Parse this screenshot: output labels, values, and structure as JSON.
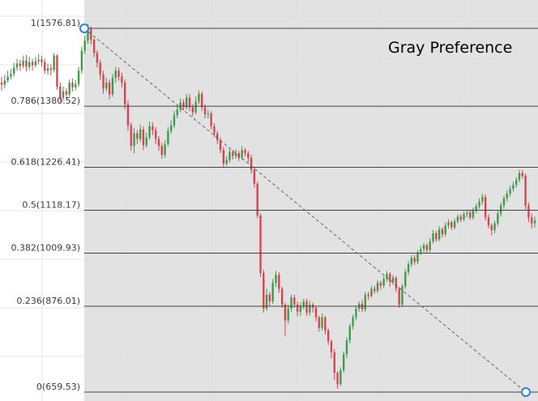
{
  "chart_data": {
    "type": "candlestick-fibonacci",
    "title": "Gray Preference",
    "fib_levels": [
      {
        "ratio": 1,
        "value": 1576.81,
        "label": "1(1576.81)"
      },
      {
        "ratio": 0.786,
        "value": 1380.52,
        "label": "0.786(1380.52)"
      },
      {
        "ratio": 0.618,
        "value": 1226.41,
        "label": "0.618(1226.41)"
      },
      {
        "ratio": 0.5,
        "value": 1118.17,
        "label": "0.5(1118.17)"
      },
      {
        "ratio": 0.382,
        "value": 1009.93,
        "label": "0.382(1009.93)"
      },
      {
        "ratio": 0.236,
        "value": 876.01,
        "label": "0.236(876.01)"
      },
      {
        "ratio": 0,
        "value": 659.53,
        "label": "0(659.53)"
      }
    ],
    "anchor_high": 1576.81,
    "anchor_low": 659.53,
    "grid": true,
    "colors": {
      "zone_fill": "#dddddd",
      "level_line": "#444444",
      "trend_line": "#666666",
      "anchor_marker": "#2f80d1",
      "bull_candle": "#3d9a4b",
      "bear_candle": "#d9434f",
      "grid": "#e6e6e6"
    },
    "candles": [
      [
        1440,
        1435,
        1455,
        1420
      ],
      [
        1435,
        1445,
        1460,
        1425
      ],
      [
        1445,
        1455,
        1470,
        1440
      ],
      [
        1455,
        1462,
        1475,
        1448
      ],
      [
        1462,
        1478,
        1490,
        1455
      ],
      [
        1478,
        1488,
        1500,
        1470
      ],
      [
        1488,
        1482,
        1498,
        1470
      ],
      [
        1482,
        1495,
        1508,
        1476
      ],
      [
        1495,
        1480,
        1510,
        1468
      ],
      [
        1480,
        1492,
        1505,
        1472
      ],
      [
        1492,
        1484,
        1500,
        1470
      ],
      [
        1484,
        1494,
        1505,
        1478
      ],
      [
        1494,
        1498,
        1512,
        1486
      ],
      [
        1498,
        1492,
        1508,
        1480
      ],
      [
        1492,
        1470,
        1500,
        1462
      ],
      [
        1470,
        1476,
        1488,
        1460
      ],
      [
        1476,
        1472,
        1486,
        1458
      ],
      [
        1472,
        1508,
        1515,
        1466
      ],
      [
        1508,
        1430,
        1512,
        1422
      ],
      [
        1430,
        1402,
        1440,
        1390
      ],
      [
        1402,
        1418,
        1430,
        1395
      ],
      [
        1418,
        1410,
        1426,
        1398
      ],
      [
        1410,
        1440,
        1448,
        1404
      ],
      [
        1440,
        1428,
        1450,
        1418
      ],
      [
        1428,
        1436,
        1446,
        1420
      ],
      [
        1436,
        1470,
        1480,
        1430
      ],
      [
        1470,
        1520,
        1530,
        1462
      ],
      [
        1520,
        1546,
        1558,
        1512
      ],
      [
        1546,
        1578,
        1588,
        1538
      ],
      [
        1578,
        1548,
        1582,
        1536
      ],
      [
        1548,
        1515,
        1552,
        1504
      ],
      [
        1515,
        1490,
        1522,
        1478
      ],
      [
        1490,
        1460,
        1498,
        1446
      ],
      [
        1460,
        1425,
        1470,
        1412
      ],
      [
        1425,
        1440,
        1452,
        1418
      ],
      [
        1440,
        1410,
        1448,
        1398
      ],
      [
        1410,
        1452,
        1462,
        1404
      ],
      [
        1452,
        1470,
        1480,
        1440
      ],
      [
        1470,
        1455,
        1478,
        1445
      ],
      [
        1455,
        1440,
        1465,
        1428
      ],
      [
        1440,
        1385,
        1448,
        1372
      ],
      [
        1385,
        1332,
        1395,
        1318
      ],
      [
        1332,
        1280,
        1340,
        1268
      ],
      [
        1280,
        1312,
        1325,
        1262
      ],
      [
        1312,
        1298,
        1320,
        1285
      ],
      [
        1298,
        1322,
        1334,
        1290
      ],
      [
        1322,
        1282,
        1330,
        1270
      ],
      [
        1282,
        1302,
        1314,
        1276
      ],
      [
        1302,
        1330,
        1342,
        1296
      ],
      [
        1330,
        1320,
        1340,
        1308
      ],
      [
        1320,
        1298,
        1328,
        1285
      ],
      [
        1298,
        1280,
        1305,
        1268
      ],
      [
        1280,
        1258,
        1288,
        1248
      ],
      [
        1258,
        1285,
        1295,
        1250
      ],
      [
        1285,
        1318,
        1328,
        1278
      ],
      [
        1318,
        1332,
        1345,
        1310
      ],
      [
        1332,
        1358,
        1368,
        1326
      ],
      [
        1358,
        1372,
        1382,
        1350
      ],
      [
        1372,
        1390,
        1400,
        1365
      ],
      [
        1390,
        1378,
        1398,
        1370
      ],
      [
        1378,
        1402,
        1412,
        1372
      ],
      [
        1402,
        1378,
        1410,
        1368
      ],
      [
        1378,
        1365,
        1385,
        1355
      ],
      [
        1365,
        1392,
        1405,
        1360
      ],
      [
        1392,
        1412,
        1420,
        1386
      ],
      [
        1412,
        1378,
        1418,
        1368
      ],
      [
        1378,
        1360,
        1385,
        1350
      ],
      [
        1360,
        1362,
        1372,
        1350
      ],
      [
        1362,
        1330,
        1368,
        1322
      ],
      [
        1330,
        1312,
        1338,
        1302
      ],
      [
        1312,
        1295,
        1318,
        1285
      ],
      [
        1295,
        1270,
        1302,
        1262
      ],
      [
        1270,
        1236,
        1278,
        1226
      ],
      [
        1236,
        1245,
        1255,
        1230
      ],
      [
        1245,
        1265,
        1272,
        1238
      ],
      [
        1265,
        1255,
        1270,
        1246
      ],
      [
        1255,
        1262,
        1272,
        1248
      ],
      [
        1262,
        1250,
        1268,
        1242
      ],
      [
        1250,
        1270,
        1280,
        1245
      ],
      [
        1270,
        1262,
        1275,
        1254
      ],
      [
        1262,
        1250,
        1268,
        1240
      ],
      [
        1250,
        1220,
        1258,
        1210
      ],
      [
        1220,
        1185,
        1228,
        1175
      ],
      [
        1185,
        1105,
        1190,
        1098
      ],
      [
        1105,
        960,
        1110,
        950
      ],
      [
        960,
        870,
        968,
        860
      ],
      [
        870,
        905,
        920,
        865
      ],
      [
        905,
        888,
        912,
        875
      ],
      [
        888,
        935,
        945,
        882
      ],
      [
        935,
        955,
        965,
        925
      ],
      [
        955,
        920,
        962,
        910
      ],
      [
        920,
        880,
        925,
        872
      ],
      [
        880,
        840,
        885,
        800
      ],
      [
        840,
        870,
        880,
        832
      ],
      [
        870,
        898,
        905,
        862
      ],
      [
        898,
        880,
        905,
        872
      ],
      [
        880,
        862,
        888,
        850
      ],
      [
        862,
        876,
        885,
        852
      ],
      [
        876,
        888,
        895,
        868
      ],
      [
        888,
        860,
        895,
        852
      ],
      [
        860,
        880,
        890,
        852
      ],
      [
        880,
        872,
        885,
        860
      ],
      [
        872,
        848,
        876,
        838
      ],
      [
        848,
        822,
        852,
        812
      ],
      [
        822,
        848,
        858,
        815
      ],
      [
        848,
        815,
        852,
        805
      ],
      [
        815,
        788,
        820,
        778
      ],
      [
        788,
        760,
        792,
        745
      ],
      [
        760,
        708,
        768,
        690
      ],
      [
        708,
        680,
        712,
        668
      ],
      [
        680,
        715,
        722,
        675
      ],
      [
        715,
        755,
        762,
        708
      ],
      [
        755,
        790,
        798,
        745
      ],
      [
        790,
        826,
        832,
        782
      ],
      [
        826,
        848,
        855,
        818
      ],
      [
        848,
        870,
        878,
        840
      ],
      [
        870,
        882,
        888,
        862
      ],
      [
        882,
        868,
        892,
        862
      ],
      [
        868,
        905,
        912,
        862
      ],
      [
        905,
        902,
        912,
        892
      ],
      [
        902,
        920,
        928,
        898
      ],
      [
        920,
        915,
        928,
        908
      ],
      [
        915,
        935,
        942,
        910
      ],
      [
        935,
        928,
        940,
        918
      ],
      [
        928,
        945,
        952,
        922
      ],
      [
        945,
        958,
        965,
        938
      ],
      [
        958,
        938,
        962,
        925
      ],
      [
        938,
        948,
        955,
        930
      ],
      [
        948,
        920,
        952,
        912
      ],
      [
        920,
        880,
        925,
        872
      ],
      [
        880,
        926,
        932,
        875
      ],
      [
        926,
        962,
        970,
        920
      ],
      [
        962,
        982,
        990,
        955
      ],
      [
        982,
        998,
        1005,
        975
      ],
      [
        998,
        988,
        1005,
        980
      ],
      [
        988,
        1012,
        1018,
        982
      ],
      [
        1012,
        1020,
        1028,
        1005
      ],
      [
        1020,
        1030,
        1036,
        1012
      ],
      [
        1030,
        1018,
        1035,
        1010
      ],
      [
        1018,
        1040,
        1048,
        1012
      ],
      [
        1040,
        1060,
        1068,
        1034
      ],
      [
        1060,
        1045,
        1066,
        1038
      ],
      [
        1045,
        1070,
        1078,
        1040
      ],
      [
        1070,
        1058,
        1075,
        1050
      ],
      [
        1058,
        1080,
        1088,
        1052
      ],
      [
        1080,
        1088,
        1095,
        1072
      ],
      [
        1088,
        1075,
        1092,
        1068
      ],
      [
        1075,
        1090,
        1098,
        1070
      ],
      [
        1090,
        1102,
        1108,
        1085
      ],
      [
        1102,
        1095,
        1108,
        1088
      ],
      [
        1095,
        1108,
        1115,
        1090
      ],
      [
        1108,
        1112,
        1120,
        1100
      ],
      [
        1112,
        1100,
        1118,
        1094
      ],
      [
        1100,
        1118,
        1125,
        1095
      ],
      [
        1118,
        1128,
        1135,
        1110
      ],
      [
        1128,
        1140,
        1148,
        1122
      ],
      [
        1140,
        1152,
        1160,
        1132
      ],
      [
        1152,
        1100,
        1158,
        1092
      ],
      [
        1100,
        1080,
        1108,
        1072
      ],
      [
        1080,
        1068,
        1085,
        1055
      ],
      [
        1068,
        1085,
        1092,
        1060
      ],
      [
        1085,
        1110,
        1118,
        1078
      ],
      [
        1110,
        1130,
        1138,
        1102
      ],
      [
        1130,
        1148,
        1155,
        1122
      ],
      [
        1148,
        1160,
        1168,
        1140
      ],
      [
        1160,
        1172,
        1180,
        1152
      ],
      [
        1172,
        1182,
        1190,
        1165
      ],
      [
        1182,
        1195,
        1202,
        1175
      ],
      [
        1195,
        1212,
        1220,
        1188
      ],
      [
        1212,
        1205,
        1220,
        1198
      ],
      [
        1205,
        1130,
        1210,
        1120
      ],
      [
        1130,
        1100,
        1138,
        1088
      ],
      [
        1100,
        1085,
        1110,
        1072
      ],
      [
        1085,
        1092,
        1102,
        1075
      ]
    ]
  }
}
